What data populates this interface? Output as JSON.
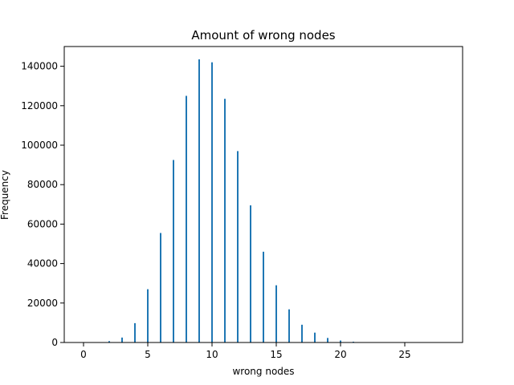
{
  "chart_data": {
    "type": "bar",
    "title": "Amount of wrong nodes",
    "xlabel": "wrong nodes",
    "ylabel": "Frequency",
    "xlim": [
      -1.5,
      29.5
    ],
    "ylim": [
      0,
      150000
    ],
    "xticks": [
      0,
      5,
      10,
      15,
      20,
      25
    ],
    "yticks": [
      0,
      20000,
      40000,
      60000,
      80000,
      100000,
      120000,
      140000
    ],
    "grid": false,
    "legend": "none",
    "bar_color": "#1f77b4",
    "x": [
      0,
      1,
      2,
      3,
      4,
      5,
      6,
      7,
      8,
      9,
      10,
      11,
      12,
      13,
      14,
      15,
      16,
      17,
      18,
      19,
      20,
      21,
      22,
      23,
      24,
      25,
      26,
      27,
      28
    ],
    "values": [
      0,
      50,
      700,
      2500,
      9800,
      27000,
      55500,
      92500,
      125000,
      143500,
      142000,
      123500,
      97000,
      69500,
      46000,
      29000,
      16800,
      9000,
      5000,
      2300,
      1000,
      400,
      150,
      60,
      20,
      10,
      5,
      2,
      1
    ]
  }
}
